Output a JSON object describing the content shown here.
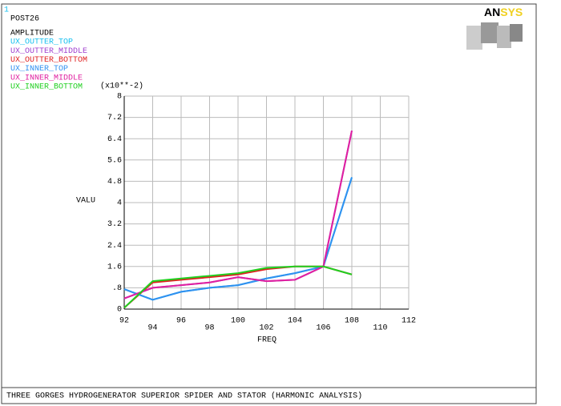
{
  "chart_data": {
    "type": "line",
    "window_number": "1",
    "plot_label": "POST26",
    "legend_title": "AMPLITUDE",
    "logo": [
      "AN",
      "SYS"
    ],
    "title": "THREE GORGES HYDROGENERATOR SUPERIOR SPIDER AND STATOR (HARMONIC ANALYSIS)",
    "y_multiplier": "(x10**-2)",
    "y_label": "VALU",
    "x_label": "FREQ",
    "x": [
      92,
      94,
      96,
      98,
      100,
      102,
      104,
      106,
      108
    ],
    "series": [
      {
        "name": "UX_OUTTER_TOP",
        "color": "#18c0f0",
        "values": [
          0.75,
          0.35,
          0.65,
          0.8,
          0.9,
          1.15,
          1.35,
          1.6,
          4.95
        ]
      },
      {
        "name": "UX_OUTTER_MIDDLE",
        "color": "#a040d0",
        "values": [
          0.4,
          0.8,
          0.9,
          1.0,
          1.2,
          1.05,
          1.1,
          1.6,
          6.7
        ]
      },
      {
        "name": "UX_OUTTER_BOTTOM",
        "color": "#e02020",
        "values": [
          0.05,
          1.0,
          1.1,
          1.2,
          1.3,
          1.5,
          1.6,
          1.6,
          1.3
        ]
      },
      {
        "name": "UX_INNER_TOP",
        "color": "#3090f0",
        "values": [
          0.75,
          0.35,
          0.65,
          0.8,
          0.9,
          1.15,
          1.35,
          1.6,
          4.95
        ]
      },
      {
        "name": "UX_INNER_MIDDLE",
        "color": "#e020a0",
        "values": [
          0.4,
          0.8,
          0.9,
          1.0,
          1.2,
          1.05,
          1.1,
          1.6,
          6.7
        ]
      },
      {
        "name": "UX_INNER_BOTTOM",
        "color": "#20d020",
        "values": [
          0.05,
          1.05,
          1.15,
          1.25,
          1.35,
          1.55,
          1.6,
          1.6,
          1.3
        ]
      }
    ],
    "xlim": [
      92,
      112
    ],
    "xticks": [
      92,
      94,
      96,
      98,
      100,
      102,
      104,
      106,
      108,
      110,
      112
    ],
    "ylim": [
      0,
      8
    ],
    "yticks": [
      0,
      {
        "value": 0.8,
        "label": ".8"
      },
      1.6,
      2.4,
      3.2,
      4,
      4.8,
      5.6,
      6.4,
      7.2,
      8
    ],
    "grid": true
  }
}
